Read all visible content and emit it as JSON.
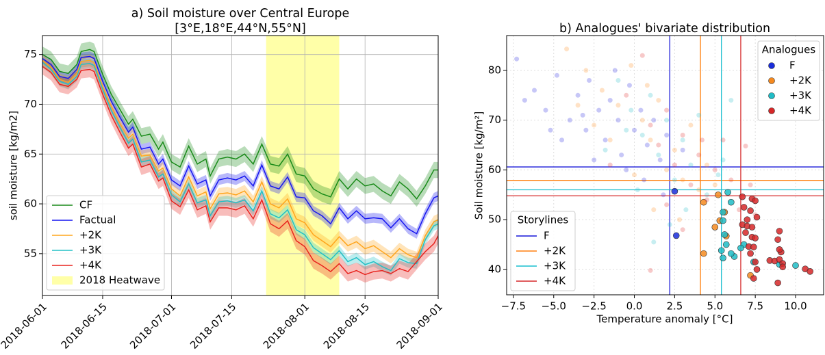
{
  "chart_data": [
    {
      "type": "line",
      "title": "a) Soil moisture over Central Europe",
      "subtitle": "[3°E,18°E,44°N,55°N]",
      "y_label": "soil moisture [kg/m2]",
      "grid": true,
      "legend": "lower left",
      "xlim": [
        "2018-06-01",
        "2018-09-01"
      ],
      "xticks": [
        "2018-06-01",
        "2018-06-15",
        "2018-07-01",
        "2018-07-15",
        "2018-08-01",
        "2018-08-15",
        "2018-09-01"
      ],
      "ylim": [
        50.8,
        76.9
      ],
      "yticks": [
        55,
        60,
        65,
        70,
        75
      ],
      "shade": {
        "name": "2018 Heatwave",
        "start": "2018-07-23",
        "end": "2018-08-09",
        "color": "#ffffa8"
      },
      "x": [
        "2018-06-01",
        "2018-06-03",
        "2018-06-05",
        "2018-06-07",
        "2018-06-09",
        "2018-06-10",
        "2018-06-12",
        "2018-06-13",
        "2018-06-15",
        "2018-06-17",
        "2018-06-19",
        "2018-06-21",
        "2018-06-22",
        "2018-06-24",
        "2018-06-26",
        "2018-06-28",
        "2018-06-29",
        "2018-07-01",
        "2018-07-03",
        "2018-07-05",
        "2018-07-07",
        "2018-07-09",
        "2018-07-10",
        "2018-07-12",
        "2018-07-14",
        "2018-07-16",
        "2018-07-18",
        "2018-07-20",
        "2018-07-22",
        "2018-07-24",
        "2018-07-26",
        "2018-07-28",
        "2018-07-30",
        "2018-08-01",
        "2018-08-03",
        "2018-08-05",
        "2018-08-07",
        "2018-08-09",
        "2018-08-11",
        "2018-08-13",
        "2018-08-15",
        "2018-08-17",
        "2018-08-19",
        "2018-08-21",
        "2018-08-23",
        "2018-08-25",
        "2018-08-27",
        "2018-08-29",
        "2018-08-31",
        "2018-09-01"
      ],
      "series": [
        {
          "name": "CF",
          "color": "#188a18",
          "spread": 0.8,
          "values": [
            75.0,
            74.5,
            73.3,
            73.1,
            74.0,
            75.3,
            75.5,
            75.3,
            73.0,
            71.0,
            69.5,
            68.0,
            68.5,
            66.8,
            67.0,
            65.5,
            66.2,
            64.2,
            63.7,
            65.8,
            64.0,
            64.5,
            62.8,
            64.5,
            64.7,
            64.5,
            65.0,
            64.0,
            66.0,
            64.0,
            63.8,
            65.0,
            63.0,
            62.8,
            61.5,
            61.0,
            60.7,
            62.5,
            61.5,
            62.5,
            61.8,
            62.0,
            61.3,
            60.8,
            62.2,
            61.5,
            60.5,
            61.8,
            63.4,
            63.4
          ]
        },
        {
          "name": "Factual",
          "color": "#1414f0",
          "spread": 0.5,
          "values": [
            74.6,
            74.0,
            72.8,
            72.6,
            73.5,
            74.7,
            74.8,
            74.6,
            72.3,
            70.3,
            68.7,
            67.2,
            67.7,
            65.5,
            65.7,
            64.0,
            64.5,
            62.4,
            61.8,
            63.8,
            62.0,
            62.4,
            60.8,
            62.4,
            62.6,
            62.4,
            62.8,
            61.8,
            63.9,
            61.8,
            61.5,
            62.7,
            60.7,
            60.6,
            59.3,
            58.8,
            58.0,
            59.6,
            58.5,
            59.3,
            58.5,
            58.6,
            58.5,
            57.6,
            58.5,
            57.5,
            57.0,
            59.0,
            60.6,
            60.8
          ]
        },
        {
          "name": "+2K",
          "color": "#ffa51c",
          "spread": 0.6,
          "values": [
            74.4,
            73.7,
            72.5,
            72.2,
            73.1,
            74.3,
            74.4,
            74.2,
            71.8,
            69.8,
            68.1,
            66.6,
            67.0,
            64.8,
            64.9,
            63.3,
            63.6,
            61.5,
            60.8,
            62.7,
            60.8,
            61.2,
            59.5,
            61.0,
            61.1,
            60.9,
            61.3,
            60.2,
            62.2,
            60.0,
            59.6,
            60.5,
            58.5,
            58.1,
            56.9,
            56.3,
            55.7,
            56.7,
            55.8,
            56.2,
            55.5,
            55.8,
            55.2,
            54.6,
            55.5,
            54.9,
            54.6,
            56.8,
            58.2,
            58.4
          ]
        },
        {
          "name": "+3K",
          "color": "#22c0c6",
          "spread": 0.5,
          "values": [
            74.2,
            73.5,
            72.3,
            72.0,
            72.8,
            74.0,
            74.1,
            73.9,
            71.5,
            69.4,
            67.7,
            66.1,
            66.5,
            64.2,
            64.4,
            62.7,
            63.0,
            60.9,
            60.2,
            62.0,
            60.1,
            60.4,
            58.8,
            60.2,
            60.3,
            60.1,
            60.4,
            59.3,
            61.3,
            59.0,
            58.6,
            59.4,
            57.4,
            56.9,
            55.6,
            55.0,
            54.4,
            55.3,
            54.2,
            54.6,
            53.9,
            54.2,
            53.7,
            53.3,
            54.5,
            54.1,
            54.0,
            56.4,
            57.8,
            58.0
          ]
        },
        {
          "name": "+4K",
          "color": "#e8231e",
          "spread": 0.8,
          "values": [
            73.8,
            73.2,
            72.0,
            71.8,
            72.5,
            73.4,
            73.5,
            73.3,
            71.0,
            68.9,
            67.2,
            65.6,
            66.0,
            63.7,
            64.0,
            62.3,
            62.6,
            60.3,
            59.7,
            61.4,
            59.4,
            59.8,
            58.2,
            59.6,
            59.6,
            59.4,
            59.8,
            58.5,
            60.4,
            58.0,
            57.5,
            58.3,
            56.3,
            55.7,
            54.3,
            53.8,
            53.2,
            54.0,
            53.0,
            53.3,
            52.9,
            53.2,
            53.3,
            53.0,
            53.5,
            53.2,
            54.2,
            55.2,
            56.0,
            56.8
          ]
        }
      ]
    },
    {
      "type": "scatter",
      "title": "b)  Analogues' bivariate distribution",
      "x_label": "Temperature anomaly [°C]",
      "y_label": "Soil moisture [kg/m²]",
      "grid": true,
      "legend": "upper right",
      "legend_title": "Analogues",
      "xlim": [
        -7.92,
        11.74
      ],
      "xticks": [
        {
          "value": -7.5,
          "label": "−7.5"
        },
        {
          "value": -5,
          "label": "−5.0"
        },
        {
          "value": -2.5,
          "label": "−2.5"
        },
        {
          "value": 0,
          "label": "0.0"
        },
        {
          "value": 2.5,
          "label": "2.5"
        },
        {
          "value": 5,
          "label": "5.0"
        },
        {
          "value": 7.5,
          "label": "7.5"
        },
        {
          "value": 10,
          "label": "10.0"
        }
      ],
      "ylim": [
        34.9,
        87.0
      ],
      "yticks": [
        40,
        50,
        60,
        70,
        80
      ],
      "background": [
        {
          "color": "#2020e0",
          "x": [
            -7.3,
            -6.2,
            -5.5,
            -4.8,
            -4,
            -3.5,
            -3,
            -2.8,
            -2.2,
            -1.8,
            -1.5,
            -1,
            -0.8,
            -0.3,
            0,
            0.4,
            0.8,
            1.2,
            1.6,
            2,
            -2.5,
            -4.5,
            -6.8,
            -1.2,
            3,
            -3.2,
            0.6,
            -5.2,
            1.8,
            -0.5
          ],
          "values": [
            82.3,
            76,
            72,
            79,
            70,
            75,
            68,
            78,
            72,
            66,
            74,
            70,
            63,
            77,
            68,
            72,
            65,
            70,
            62,
            67,
            62,
            66,
            74,
            80,
            64,
            71,
            58,
            68,
            55,
            60
          ]
        },
        {
          "color": "#ff8c1a",
          "x": [
            -4.2,
            -3,
            -2,
            -1,
            -0.2,
            0.5,
            1,
            1.5,
            2,
            2.5,
            3,
            3.5,
            4,
            4.5,
            -1.5,
            0,
            -3.5,
            1.2,
            5,
            2.8,
            -2.5,
            0.8
          ],
          "values": [
            84.3,
            80,
            76,
            73,
            81,
            70,
            66,
            74,
            60,
            64,
            58,
            69,
            56,
            61,
            66,
            59,
            73,
            52,
            57,
            50,
            69,
            77
          ]
        },
        {
          "color": "#1fbcc6",
          "x": [
            -1,
            -0.2,
            0.5,
            1,
            1.5,
            2,
            2.5,
            3,
            3.5,
            4,
            4.5,
            5.2,
            6,
            0.2,
            -1.8,
            1.2,
            3.2,
            5.5,
            2.2,
            -0.5
          ],
          "values": [
            78,
            72,
            67,
            75,
            63,
            70,
            58,
            66,
            61,
            71,
            55,
            59,
            74,
            56,
            64,
            45.5,
            52,
            62,
            49,
            68
          ]
        },
        {
          "color": "#e02828",
          "x": [
            -0.5,
            0.5,
            1,
            1.5,
            2,
            2.5,
            3,
            3.5,
            4,
            4.5,
            5,
            5.5,
            6,
            6.5,
            6.9,
            3,
            2,
            7.2,
            4.2,
            -1.5,
            1,
            7.5
          ],
          "values": [
            75,
            83,
            69,
            65,
            72,
            61,
            67,
            57,
            63,
            54,
            60,
            66,
            58,
            52,
            64.8,
            48,
            53,
            57,
            66,
            61,
            39.8,
            51
          ]
        }
      ],
      "series": [
        {
          "name": "F",
          "color": "#1a2ddb",
          "x": [
            2.5,
            2.6
          ],
          "values": [
            55.7,
            46.8
          ]
        },
        {
          "name": "+2K",
          "color": "#f5891e",
          "x": [
            4.3,
            5.0,
            5.3,
            5.6,
            4.3,
            7.2,
            5.7,
            5.2
          ],
          "values": [
            53.5,
            48.5,
            49.8,
            51.5,
            43.2,
            38.8,
            46.7,
            55.0
          ]
        },
        {
          "name": "+3K",
          "color": "#1fbcc6",
          "x": [
            5.8,
            6.0,
            5.5,
            5.5,
            5.6,
            5.7,
            5.4,
            5.5,
            6.2,
            6.8,
            6.6,
            7.4,
            9.0,
            10.0,
            6.0
          ],
          "values": [
            55.5,
            53.5,
            51.5,
            49.8,
            47.0,
            45.0,
            43.8,
            42.3,
            42.6,
            45.0,
            44.3,
            41.5,
            41.0,
            40.8,
            43.2
          ]
        },
        {
          "name": "+4K",
          "color": "#d62728",
          "x": [
            6.7,
            7.3,
            6.8,
            7.5,
            7.2,
            7.0,
            7.6,
            6.7,
            7.0,
            7.3,
            6.9,
            7.3,
            7.5,
            7.1,
            7.4,
            7.2,
            7.5,
            7.6,
            7.4,
            8.4,
            8.7,
            9.0,
            9.1,
            8.9,
            9.0,
            9.2,
            8.9,
            9.2,
            10.6,
            10.9,
            9.0
          ],
          "values": [
            54.6,
            54.2,
            52.5,
            53.8,
            51.8,
            50.0,
            50.5,
            49.0,
            48.7,
            48.5,
            47.4,
            46.5,
            46.3,
            44.6,
            44.5,
            43.2,
            41.5,
            40.0,
            38.2,
            41.8,
            41.7,
            42.0,
            43.5,
            46.0,
            47.7,
            41.2,
            37.3,
            40.5,
            40.1,
            39.6,
            44.0
          ]
        }
      ],
      "storylines": {
        "title": "Storylines",
        "series": [
          {
            "name": "F",
            "color": "#1515d8",
            "x": 2.2,
            "y": 60.6
          },
          {
            "name": "+2K",
            "color": "#ff7f0e",
            "x": 4.1,
            "y": 57.9
          },
          {
            "name": "+3K",
            "color": "#17becf",
            "x": 5.4,
            "y": 56.0
          },
          {
            "name": "+4K",
            "color": "#d62728",
            "x": 6.6,
            "y": 54.8
          }
        ]
      }
    }
  ]
}
